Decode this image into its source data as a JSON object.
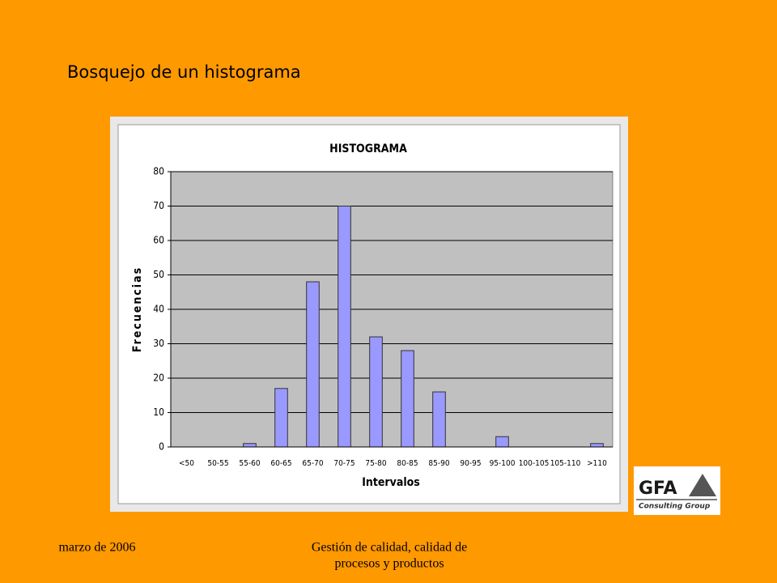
{
  "slide": {
    "title": "Bosquejo de un histograma",
    "footer_left": "marzo de 2006",
    "footer_center": [
      "Gestión de calidad, calidad de",
      "procesos y productos"
    ],
    "logo": {
      "name": "GFA",
      "subtitle": "Consulting Group"
    }
  },
  "chart_data": {
    "type": "bar",
    "title": "HISTOGRAMA",
    "x_label": "Intervalos",
    "y_label": "Frecuencias",
    "categories": [
      "<50",
      "50-55",
      "55-60",
      "60-65",
      "65-70",
      "70-75",
      "75-80",
      "80-85",
      "85-90",
      "90-95",
      "95-100",
      "100-105",
      "105-110",
      ">110"
    ],
    "values": [
      0,
      0,
      1,
      17,
      48,
      70,
      32,
      28,
      16,
      0,
      3,
      0,
      0,
      1
    ],
    "color": "#9999ff",
    "ylim": [
      0,
      80
    ],
    "yticks": [
      0,
      10,
      20,
      30,
      40,
      50,
      60,
      70,
      80
    ],
    "grid": true
  }
}
